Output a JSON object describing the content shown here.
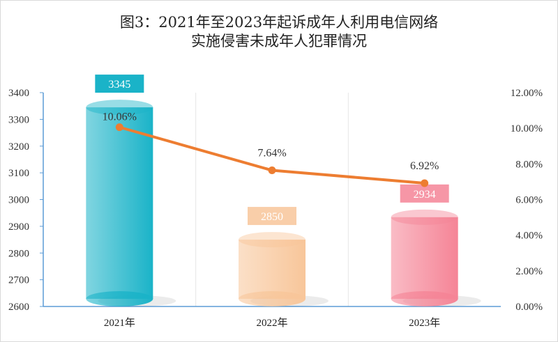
{
  "chart_data": {
    "type": "bar+line",
    "title": [
      "图3：2021年至2023年起诉成年人利用电信网络",
      "实施侵害未成年人犯罪情况"
    ],
    "categories": [
      "2021年",
      "2022年",
      "2023年"
    ],
    "series": [
      {
        "type": "bar",
        "axis": "left",
        "values": [
          3345,
          2850,
          2934
        ],
        "labels": [
          "3345",
          "2850",
          "2934"
        ],
        "colors": [
          "#1ab3c8",
          "#f8c69a",
          "#f58496"
        ]
      },
      {
        "type": "line",
        "axis": "right",
        "values": [
          10.06,
          7.64,
          6.92
        ],
        "labels": [
          "10.06%",
          "7.64%",
          "6.92%"
        ],
        "color": "#ed7d31"
      }
    ],
    "left_axis": {
      "ylim": [
        2600,
        3400
      ],
      "ticks": [
        "2600",
        "2700",
        "2800",
        "2900",
        "3000",
        "3100",
        "3200",
        "3300",
        "3400"
      ]
    },
    "right_axis": {
      "ylim": [
        0,
        12
      ],
      "ticks": [
        "0.00%",
        "2.00%",
        "4.00%",
        "6.00%",
        "8.00%",
        "10.00%",
        "12.00%"
      ]
    },
    "grid": "vertical-category-lines",
    "legend": "none"
  }
}
